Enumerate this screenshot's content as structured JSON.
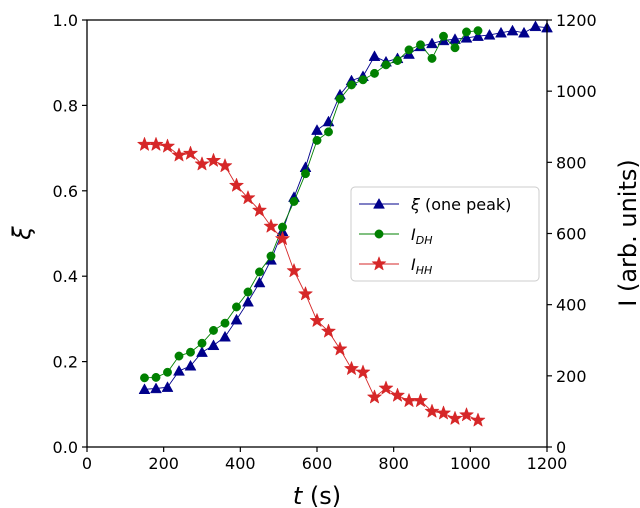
{
  "chart_data": {
    "type": "line",
    "xlabel_italic": "t",
    "xlabel_unit": " (s)",
    "ylabel_left": "ξ",
    "ylabel_right": "I (arb. units)",
    "xlim": [
      0,
      1200
    ],
    "ylim_left": [
      0,
      1.0
    ],
    "ylim_right": [
      0,
      1200
    ],
    "x_ticks": [
      0,
      200,
      400,
      600,
      800,
      1000,
      1200
    ],
    "y_left_ticks": [
      "0.0",
      "0.2",
      "0.4",
      "0.6",
      "0.8",
      "1.0"
    ],
    "y_right_ticks": [
      "0",
      "200",
      "400",
      "600",
      "800",
      "1000",
      "1200"
    ],
    "legend_position": "center-right",
    "series": [
      {
        "name": "ξ (one peak)",
        "name_main": "ξ",
        "name_rest": " (one peak)",
        "axis": "left",
        "marker": "triangle",
        "color": "#00008b",
        "x": [
          150,
          180,
          210,
          240,
          270,
          300,
          330,
          360,
          390,
          420,
          450,
          480,
          510,
          540,
          570,
          600,
          630,
          660,
          690,
          720,
          750,
          780,
          810,
          840,
          870,
          900,
          930,
          960,
          990,
          1020,
          1050,
          1080,
          1110,
          1140,
          1170,
          1200
        ],
        "y": [
          0.135,
          0.137,
          0.14,
          0.178,
          0.19,
          0.222,
          0.238,
          0.258,
          0.298,
          0.34,
          0.385,
          0.438,
          0.505,
          0.585,
          0.655,
          0.742,
          0.762,
          0.825,
          0.858,
          0.868,
          0.915,
          0.902,
          0.91,
          0.92,
          0.938,
          0.945,
          0.952,
          0.955,
          0.958,
          0.962,
          0.965,
          0.97,
          0.975,
          0.97,
          0.985,
          0.982
        ]
      },
      {
        "name": "I_DH",
        "name_main": "I",
        "name_sub": "DH",
        "axis": "left",
        "marker": "circle",
        "color": "#008000",
        "x": [
          150,
          180,
          210,
          240,
          270,
          300,
          330,
          360,
          390,
          420,
          450,
          480,
          510,
          540,
          570,
          600,
          630,
          660,
          690,
          720,
          750,
          780,
          810,
          840,
          870,
          900,
          930,
          960,
          990,
          1020
        ],
        "y": [
          0.162,
          0.163,
          0.175,
          0.213,
          0.222,
          0.243,
          0.273,
          0.29,
          0.328,
          0.363,
          0.41,
          0.447,
          0.515,
          0.575,
          0.64,
          0.718,
          0.738,
          0.815,
          0.848,
          0.86,
          0.875,
          0.895,
          0.905,
          0.93,
          0.942,
          0.91,
          0.962,
          0.935,
          0.972,
          0.975
        ]
      },
      {
        "name": "I_HH",
        "name_main": "I",
        "name_sub": "HH",
        "axis": "right",
        "marker": "star",
        "color": "#d62728",
        "x": [
          150,
          180,
          210,
          240,
          270,
          300,
          330,
          360,
          390,
          420,
          450,
          480,
          510,
          540,
          570,
          600,
          630,
          660,
          690,
          720,
          750,
          780,
          810,
          840,
          870,
          900,
          930,
          960,
          990,
          1020
        ],
        "y": [
          850,
          850,
          845,
          820,
          825,
          795,
          805,
          790,
          735,
          700,
          665,
          620,
          585,
          495,
          430,
          355,
          325,
          275,
          220,
          210,
          140,
          165,
          145,
          130,
          130,
          100,
          95,
          80,
          90,
          75
        ]
      }
    ]
  }
}
